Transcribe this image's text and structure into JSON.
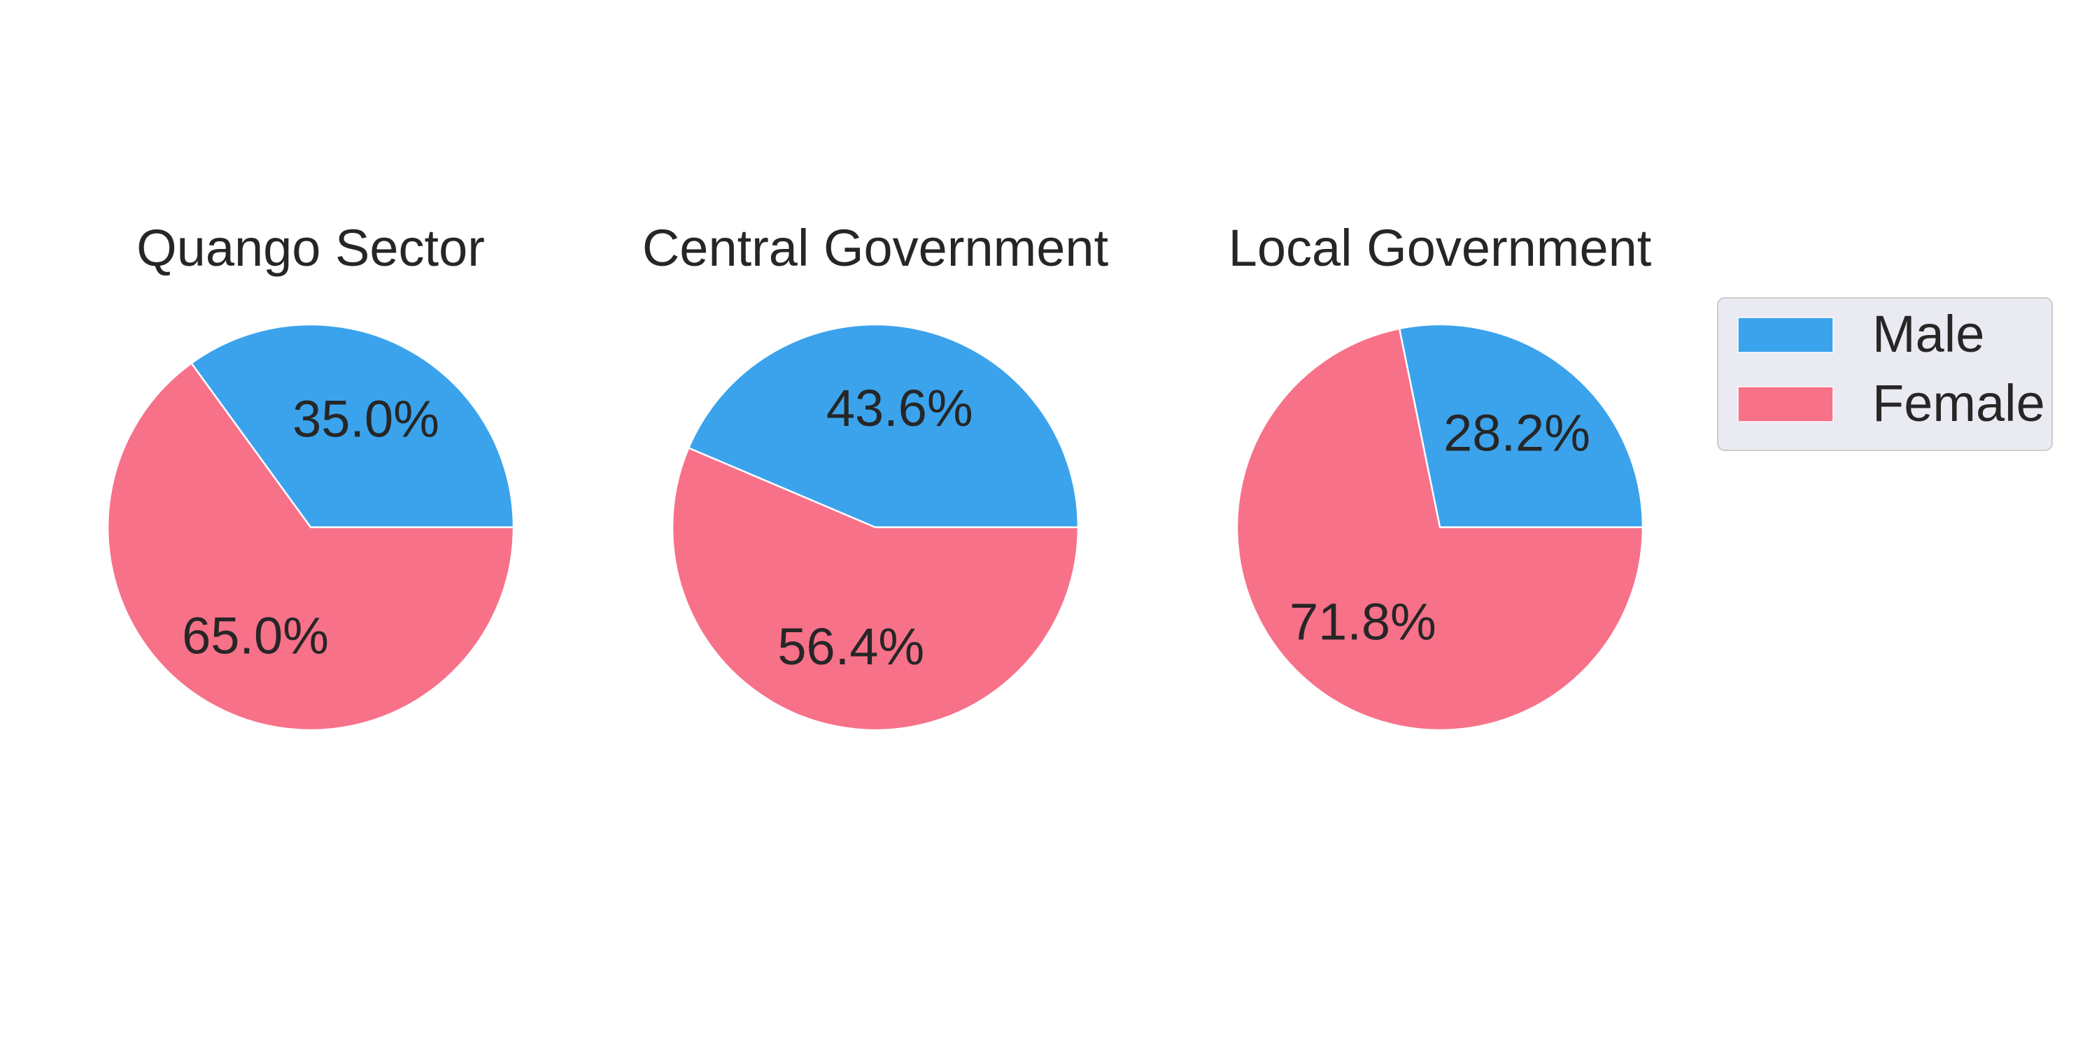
{
  "chart_data": [
    {
      "type": "pie",
      "title": "Quango Sector",
      "categories": [
        "Male",
        "Female"
      ],
      "values": [
        35.0,
        65.0
      ],
      "labels": [
        "35.0%",
        "65.0%"
      ],
      "colors": [
        "#3ba3ec",
        "#f77189"
      ]
    },
    {
      "type": "pie",
      "title": "Central Government",
      "categories": [
        "Male",
        "Female"
      ],
      "values": [
        43.6,
        56.4
      ],
      "labels": [
        "43.6%",
        "56.4%"
      ],
      "colors": [
        "#3ba3ec",
        "#f77189"
      ]
    },
    {
      "type": "pie",
      "title": "Local Government",
      "categories": [
        "Male",
        "Female"
      ],
      "values": [
        28.2,
        71.8
      ],
      "labels": [
        "28.2%",
        "71.8%"
      ],
      "colors": [
        "#3ba3ec",
        "#f77189"
      ]
    }
  ],
  "legend": {
    "placement": "right",
    "entries": [
      {
        "label": "Male",
        "color": "#3ba3ec"
      },
      {
        "label": "Female",
        "color": "#f77189"
      }
    ]
  }
}
